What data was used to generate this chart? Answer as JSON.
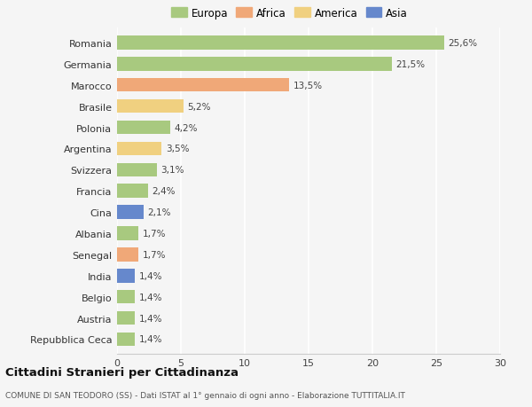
{
  "countries": [
    "Romania",
    "Germania",
    "Marocco",
    "Brasile",
    "Polonia",
    "Argentina",
    "Svizzera",
    "Francia",
    "Cina",
    "Albania",
    "Senegal",
    "India",
    "Belgio",
    "Austria",
    "Repubblica Ceca"
  ],
  "values": [
    25.6,
    21.5,
    13.5,
    5.2,
    4.2,
    3.5,
    3.1,
    2.4,
    2.1,
    1.7,
    1.7,
    1.4,
    1.4,
    1.4,
    1.4
  ],
  "labels": [
    "25,6%",
    "21,5%",
    "13,5%",
    "5,2%",
    "4,2%",
    "3,5%",
    "3,1%",
    "2,4%",
    "2,1%",
    "1,7%",
    "1,7%",
    "1,4%",
    "1,4%",
    "1,4%",
    "1,4%"
  ],
  "continents": [
    "Europa",
    "Europa",
    "Africa",
    "America",
    "Europa",
    "America",
    "Europa",
    "Europa",
    "Asia",
    "Europa",
    "Africa",
    "Asia",
    "Europa",
    "Europa",
    "Europa"
  ],
  "colors": {
    "Europa": "#a8c97f",
    "Africa": "#f0a878",
    "America": "#f0d080",
    "Asia": "#6688cc"
  },
  "xlim": [
    0,
    30
  ],
  "xticks": [
    0,
    5,
    10,
    15,
    20,
    25,
    30
  ],
  "title": "Cittadini Stranieri per Cittadinanza",
  "subtitle": "COMUNE DI SAN TEODORO (SS) - Dati ISTAT al 1° gennaio di ogni anno - Elaborazione TUTTITALIA.IT",
  "background_color": "#f5f5f5",
  "bar_height": 0.65
}
